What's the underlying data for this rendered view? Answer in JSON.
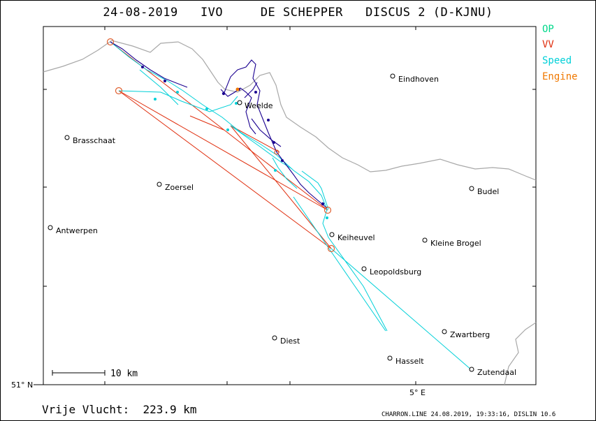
{
  "title": "24-08-2019   IVO     DE SCHEPPER   DISCUS 2 (D-KJNU)",
  "legend": [
    {
      "label": "OP",
      "color": "#00d88a"
    },
    {
      "label": "VV",
      "color": "#e03010"
    },
    {
      "label": "Speed",
      "color": "#00d0d8"
    },
    {
      "label": "Engine",
      "color": "#f07800"
    }
  ],
  "scale_label": "10 km",
  "lat_label": "51° N",
  "lon_label": "5° E",
  "distance_text": "Vrije Vlucht:  223.9 km",
  "footer_text": "CHARRON.LINE 24.08.2019, 19:33:16, DISLIN 10.6",
  "cities": [
    {
      "name": "Eindhoven"
    },
    {
      "name": "Weelde"
    },
    {
      "name": "Brasschaat"
    },
    {
      "name": "Zoersel"
    },
    {
      "name": "Budel"
    },
    {
      "name": "Antwerpen"
    },
    {
      "name": "Keiheuvel"
    },
    {
      "name": "Kleine Brogel"
    },
    {
      "name": "Leopoldsburg"
    },
    {
      "name": "Zwartberg"
    },
    {
      "name": "Diest"
    },
    {
      "name": "Hasselt"
    },
    {
      "name": "Zutendaal"
    }
  ],
  "colors": {
    "border": "#a8a8a8",
    "task": "#e03010",
    "track_speed": "#00d0d8",
    "track_climb": "#1a0090",
    "turnpoint": "#e06030"
  }
}
